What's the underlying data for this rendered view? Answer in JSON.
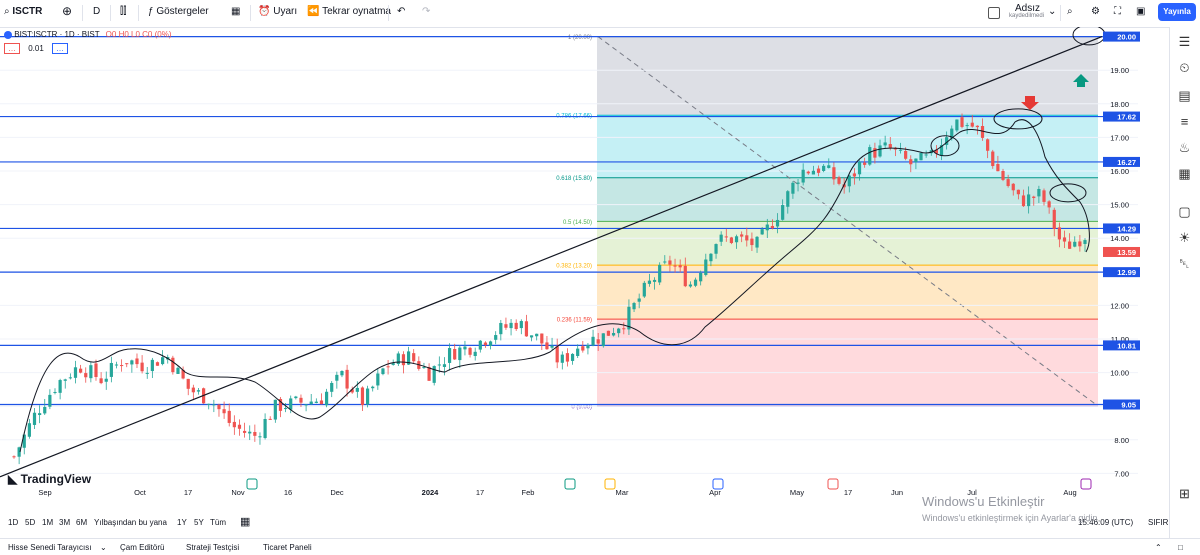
{
  "toolbar": {
    "symbol": "ISCTR",
    "interval": "D",
    "indicators_label": "Göstergeler",
    "alert_label": "Uyarı",
    "replay_label": "Tekrar oynatma",
    "user_name": "Adsız",
    "save_status": "kaydedilmedi",
    "publish_label": "Yayınla"
  },
  "legend": {
    "title": "BIST:ISCTR · 1D · BIST",
    "ohlc": "O0 H0 L0 C0 (0%)",
    "sub_value": "0.01"
  },
  "bottom_bar": {
    "ranges": [
      "1D",
      "5D",
      "1M",
      "3M",
      "6M",
      "Yılbaşından bu yana",
      "1Y",
      "5Y",
      "Tüm"
    ],
    "time": "15:46:09 (UTC)",
    "reset": "SIFIR"
  },
  "panel_tabs": [
    "Hisse Senedi Tarayıcısı",
    "Çam Editörü",
    "Strateji Testçisi",
    "Ticaret Paneli"
  ],
  "watermark": {
    "title": "Windows'u Etkinleştir",
    "subtitle": "Windows'u etkinleştirmek için Ayarlar'a gidin"
  },
  "logo_text": "TradingView",
  "colors": {
    "up": "#26a69a",
    "down": "#ef5350",
    "accent": "#2962ff",
    "hline": "#1e53e5"
  },
  "chart_data": {
    "type": "candlestick",
    "ylim": [
      6.8,
      20.2
    ],
    "y_ticks": [
      7.0,
      8.0,
      9.0,
      10.0,
      11.0,
      12.0,
      13.0,
      14.0,
      15.0,
      16.0,
      17.0,
      18.0,
      19.0
    ],
    "x_ticks": [
      "Sep",
      "Oct",
      "17",
      "Nov",
      "16",
      "Dec",
      "2024",
      "17",
      "Feb",
      "Mar",
      "Apr",
      "May",
      "17",
      "Jun",
      "Jul",
      "Aug"
    ],
    "price_lines": [
      20.0,
      17.62,
      16.27,
      14.29,
      12.99,
      10.81,
      9.05
    ],
    "last_price": 13.59,
    "fib_levels": [
      {
        "label": "1 (20.00)",
        "value": 20.0
      },
      {
        "label": "0.786 (17.66)",
        "value": 17.66
      },
      {
        "label": "0.618 (15.80)",
        "value": 15.8
      },
      {
        "label": "0.5 (14.50)",
        "value": 14.5
      },
      {
        "label": "0.382 (13.20)",
        "value": 13.2
      },
      {
        "label": "0.236 (11.59)",
        "value": 11.59
      },
      {
        "label": "0 (9.00)",
        "value": 9.0
      }
    ],
    "close_path": [
      [
        "Sep",
        7.5
      ],
      [
        "Sep",
        8.8
      ],
      [
        "Sep",
        9.7
      ],
      [
        "Sep",
        10.2
      ],
      [
        "Oct",
        9.8
      ],
      [
        "Oct",
        10.4
      ],
      [
        "Oct",
        10.2
      ],
      [
        "Oct",
        10.5
      ],
      [
        "Nov",
        9.5
      ],
      [
        "Nov",
        9.2
      ],
      [
        "Nov",
        8.4
      ],
      [
        "Nov",
        8.1
      ],
      [
        "Dec",
        9.0
      ],
      [
        "Dec",
        9.1
      ],
      [
        "Dec",
        9.2
      ],
      [
        "Dec",
        9.9
      ],
      [
        "2024",
        9.1
      ],
      [
        "Jan",
        10.2
      ],
      [
        "Jan",
        10.5
      ],
      [
        "Jan",
        10.0
      ],
      [
        "Feb",
        10.6
      ],
      [
        "Feb",
        10.8
      ],
      [
        "Feb",
        11.2
      ],
      [
        "Feb",
        11.5
      ],
      [
        "Mar",
        11.0
      ],
      [
        "Mar",
        10.3
      ],
      [
        "Mar",
        10.9
      ],
      [
        "Mar",
        11.1
      ],
      [
        "Apr",
        11.6
      ],
      [
        "Apr",
        12.6
      ],
      [
        "Apr",
        13.3
      ],
      [
        "Apr",
        12.6
      ],
      [
        "May",
        13.9
      ],
      [
        "May",
        14.0
      ],
      [
        "May",
        13.8
      ],
      [
        "May",
        14.8
      ],
      [
        "Jun",
        16.0
      ],
      [
        "Jun",
        16.1
      ],
      [
        "Jun",
        15.5
      ],
      [
        "Jun",
        16.5
      ],
      [
        "Jul",
        16.7
      ],
      [
        "Jul",
        16.2
      ],
      [
        "Jul",
        16.4
      ],
      [
        "Jul",
        17.5
      ],
      [
        "Jul",
        17.3
      ],
      [
        "Jul",
        16.0
      ],
      [
        "Aug",
        15.1
      ],
      [
        "Aug",
        15.3
      ],
      [
        "Aug",
        13.7
      ],
      [
        "Aug",
        14.1
      ]
    ]
  }
}
